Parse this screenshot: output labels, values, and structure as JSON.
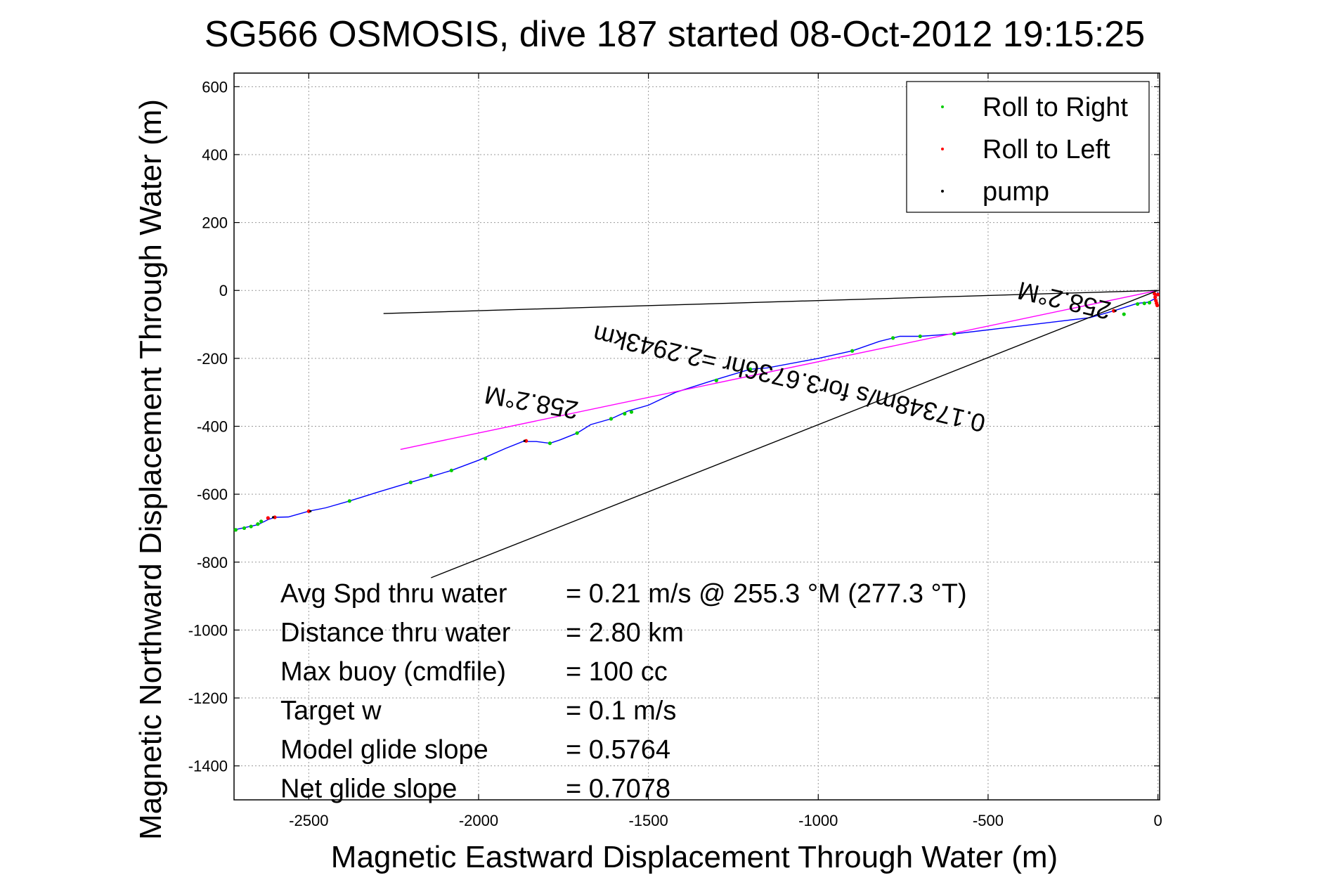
{
  "chart_data": {
    "type": "line",
    "title": "SG566 OSMOSIS, dive 187 started 08-Oct-2012 19:15:25",
    "xlabel": "Magnetic Eastward Displacement Through Water (m)",
    "ylabel": "Magnetic Northward Displacement Through Water (m)",
    "xlim": [
      -2720,
      5
    ],
    "ylim": [
      -1500,
      640
    ],
    "xticks": [
      -2500,
      -2000,
      -1500,
      -1000,
      -500,
      0
    ],
    "yticks": [
      600,
      400,
      200,
      0,
      -200,
      -400,
      -600,
      -800,
      -1000,
      -1200,
      -1400
    ],
    "grid": true,
    "legend_position": "top-right",
    "legend": [
      {
        "label": "Roll to Right",
        "color": "#00cc00"
      },
      {
        "label": "Roll to Left",
        "color": "#ff0000"
      },
      {
        "label": "pump",
        "color": "#000000"
      }
    ],
    "series": [
      {
        "kind": "track",
        "color": "#0000ff",
        "x": [
          -2720,
          -2650,
          -2620,
          -2600,
          -2560,
          -2500,
          -2450,
          -2380,
          -2300,
          -2200,
          -2130,
          -2080,
          -2000,
          -1920,
          -1870,
          -1830,
          -1790,
          -1760,
          -1710,
          -1670,
          -1610,
          -1560,
          -1500,
          -1420,
          -1300,
          -1200,
          -1150,
          -1000,
          -900,
          -820,
          -760,
          -700,
          -600,
          -450,
          -300,
          -200,
          -130,
          -60,
          -30,
          -10,
          0
        ],
        "y": [
          -705,
          -690,
          -675,
          -668,
          -667,
          -650,
          -640,
          -620,
          -595,
          -565,
          -545,
          -530,
          -500,
          -465,
          -445,
          -445,
          -450,
          -440,
          -420,
          -395,
          -378,
          -355,
          -338,
          -300,
          -262,
          -232,
          -228,
          -200,
          -178,
          -150,
          -135,
          -135,
          -128,
          -110,
          -92,
          -80,
          -60,
          -38,
          -35,
          -25,
          -5
        ]
      },
      {
        "kind": "model_heading_line",
        "color": "#ff00ff",
        "x": [
          -2230,
          0
        ],
        "y": [
          -468,
          0
        ]
      },
      {
        "kind": "reference_line",
        "color": "#000000",
        "x": [
          -2280,
          0
        ],
        "y": [
          -68,
          0
        ]
      },
      {
        "kind": "reference_line",
        "color": "#000000",
        "x": [
          -2140,
          0
        ],
        "y": [
          -846,
          0
        ]
      }
    ],
    "markers": {
      "roll_right": {
        "color": "#00cc00",
        "x": [
          -2715,
          -2690,
          -2670,
          -2650,
          -2640,
          -2380,
          -2200,
          -2140,
          -2080,
          -1980,
          -1790,
          -1710,
          -1610,
          -1570,
          -1550,
          -1300,
          -1200,
          -900,
          -780,
          -700,
          -600,
          -100,
          -60,
          -40,
          -25
        ],
        "y": [
          -705,
          -700,
          -695,
          -688,
          -680,
          -620,
          -565,
          -545,
          -530,
          -495,
          -450,
          -420,
          -378,
          -363,
          -358,
          -265,
          -232,
          -178,
          -140,
          -135,
          -128,
          -70,
          -40,
          -38,
          -36
        ]
      },
      "roll_left": {
        "color": "#ff0000",
        "x": [
          -2620,
          -2600,
          -2500,
          -1860,
          -130,
          -10,
          -8,
          -6,
          -4,
          -2,
          0
        ],
        "y": [
          -670,
          -668,
          -650,
          -443,
          -60,
          -10,
          -20,
          -30,
          -38,
          -44,
          -12
        ]
      },
      "pump": {
        "color": "#000000",
        "x": [
          -2605,
          -2495,
          -1865,
          -125
        ],
        "y": [
          -668,
          -650,
          -443,
          -60
        ]
      }
    },
    "annotations": [
      {
        "text": "258.2°M",
        "x": -1840,
        "y": -305,
        "rotation_deg": 190
      },
      {
        "text": "0.17348m/s for3.6736hr =2.2943km",
        "x": -1080,
        "y": -235,
        "rotation_deg": 193
      },
      {
        "text": "258.2°M",
        "x": -270,
        "y": -5,
        "rotation_deg": 193
      }
    ],
    "stats": [
      {
        "label": "Avg Spd thru water",
        "value": "=  0.21 m/s @ 255.3 °M (277.3 °T)"
      },
      {
        "label": "Distance thru water",
        "value": "=  2.80 km"
      },
      {
        "label": "Max buoy (cmdfile)",
        "value": "= 100 cc"
      },
      {
        "label": "Target w",
        "value": "= 0.1 m/s"
      },
      {
        "label": "Model glide slope",
        "value": "= 0.5764"
      },
      {
        "label": "Net glide slope",
        "value": "= 0.7078"
      }
    ]
  }
}
